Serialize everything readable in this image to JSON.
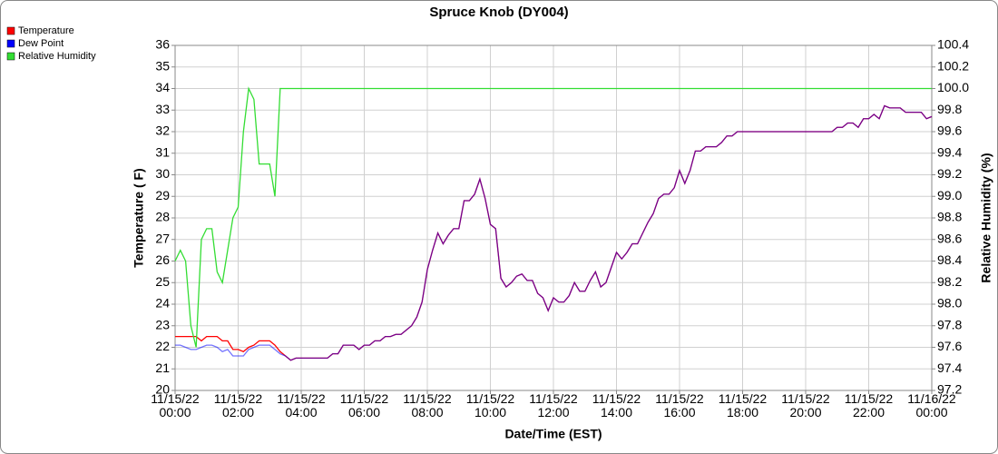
{
  "chart_data": {
    "type": "line",
    "title": "Spruce Knob (DY004)",
    "x_label": "Date/Time (EST)",
    "y_label": "Temperature ( F)",
    "y2_label": "Relative Humidity (%)",
    "xlim": [
      "11/15/22 00:00",
      "11/16/22 00:00"
    ],
    "xticks": [
      "11/15/22 00:00",
      "11/15/22 02:00",
      "11/15/22 04:00",
      "11/15/22 06:00",
      "11/15/22 08:00",
      "11/15/22 10:00",
      "11/15/22 12:00",
      "11/15/22 14:00",
      "11/15/22 16:00",
      "11/15/22 18:00",
      "11/15/22 20:00",
      "11/15/22 22:00",
      "11/16/22 00:00"
    ],
    "ylim": [
      20,
      36
    ],
    "yticks": [
      20,
      21,
      22,
      23,
      24,
      25,
      26,
      27,
      28,
      29,
      30,
      31,
      32,
      33,
      34,
      35,
      36
    ],
    "y2lim": [
      97.2,
      100.4
    ],
    "y2ticks": [
      97.2,
      97.4,
      97.6,
      97.8,
      {
        "value": 98,
        "label": "98.0"
      },
      98.2,
      98.4,
      98.6,
      98.8,
      {
        "value": 99,
        "label": "99.0"
      },
      99.2,
      99.4,
      99.6,
      99.8,
      {
        "value": 100,
        "label": "100.0"
      },
      100.2,
      100.4
    ],
    "grid": true,
    "legend": "top-left",
    "x": [
      "11/15/22 00:00",
      "11/15/22 00:10",
      "11/15/22 00:20",
      "11/15/22 00:30",
      "11/15/22 00:40",
      "11/15/22 00:50",
      "11/15/22 01:00",
      "11/15/22 01:10",
      "11/15/22 01:20",
      "11/15/22 01:30",
      "11/15/22 01:40",
      "11/15/22 01:50",
      "11/15/22 02:00",
      "11/15/22 02:10",
      "11/15/22 02:20",
      "11/15/22 02:30",
      "11/15/22 02:40",
      "11/15/22 02:50",
      "11/15/22 03:00",
      "11/15/22 03:10",
      "11/15/22 03:20",
      "11/15/22 03:30",
      "11/15/22 03:40",
      "11/15/22 03:50",
      "11/15/22 04:00",
      "11/15/22 04:10",
      "11/15/22 04:20",
      "11/15/22 04:30",
      "11/15/22 04:40",
      "11/15/22 04:50",
      "11/15/22 05:00",
      "11/15/22 05:10",
      "11/15/22 05:20",
      "11/15/22 05:30",
      "11/15/22 05:40",
      "11/15/22 05:50",
      "11/15/22 06:00",
      "11/15/22 06:10",
      "11/15/22 06:20",
      "11/15/22 06:30",
      "11/15/22 06:40",
      "11/15/22 06:50",
      "11/15/22 07:00",
      "11/15/22 07:10",
      "11/15/22 07:20",
      "11/15/22 07:30",
      "11/15/22 07:40",
      "11/15/22 07:50",
      "11/15/22 08:00",
      "11/15/22 08:10",
      "11/15/22 08:20",
      "11/15/22 08:30",
      "11/15/22 08:40",
      "11/15/22 08:50",
      "11/15/22 09:00",
      "11/15/22 09:10",
      "11/15/22 09:20",
      "11/15/22 09:30",
      "11/15/22 09:40",
      "11/15/22 09:50",
      "11/15/22 10:00",
      "11/15/22 10:10",
      "11/15/22 10:20",
      "11/15/22 10:30",
      "11/15/22 10:40",
      "11/15/22 10:50",
      "11/15/22 11:00",
      "11/15/22 11:10",
      "11/15/22 11:20",
      "11/15/22 11:30",
      "11/15/22 11:40",
      "11/15/22 11:50",
      "11/15/22 12:00",
      "11/15/22 12:10",
      "11/15/22 12:20",
      "11/15/22 12:30",
      "11/15/22 12:40",
      "11/15/22 12:50",
      "11/15/22 13:00",
      "11/15/22 13:10",
      "11/15/22 13:20",
      "11/15/22 13:30",
      "11/15/22 13:40",
      "11/15/22 13:50",
      "11/15/22 14:00",
      "11/15/22 14:10",
      "11/15/22 14:20",
      "11/15/22 14:30",
      "11/15/22 14:40",
      "11/15/22 14:50",
      "11/15/22 15:00",
      "11/15/22 15:10",
      "11/15/22 15:20",
      "11/15/22 15:30",
      "11/15/22 15:40",
      "11/15/22 15:50",
      "11/15/22 16:00",
      "11/15/22 16:10",
      "11/15/22 16:20",
      "11/15/22 16:30",
      "11/15/22 16:40",
      "11/15/22 16:50",
      "11/15/22 17:00",
      "11/15/22 17:10",
      "11/15/22 17:20",
      "11/15/22 17:30",
      "11/15/22 17:40",
      "11/15/22 17:50",
      "11/15/22 18:00",
      "11/15/22 18:10",
      "11/15/22 18:20",
      "11/15/22 18:30",
      "11/15/22 18:40",
      "11/15/22 18:50",
      "11/15/22 19:00",
      "11/15/22 19:10",
      "11/15/22 19:20",
      "11/15/22 19:30",
      "11/15/22 19:40",
      "11/15/22 19:50",
      "11/15/22 20:00",
      "11/15/22 20:10",
      "11/15/22 20:20",
      "11/15/22 20:30",
      "11/15/22 20:40",
      "11/15/22 20:50",
      "11/15/22 21:00",
      "11/15/22 21:10",
      "11/15/22 21:20",
      "11/15/22 21:30",
      "11/15/22 21:40",
      "11/15/22 21:50",
      "11/15/22 22:00",
      "11/15/22 22:10",
      "11/15/22 22:20",
      "11/15/22 22:30",
      "11/15/22 22:40",
      "11/15/22 22:50",
      "11/15/22 23:00",
      "11/15/22 23:10",
      "11/15/22 23:20",
      "11/15/22 23:30",
      "11/15/22 23:40",
      "11/15/22 23:50",
      "11/16/22 00:00"
    ],
    "series": [
      {
        "name": "Temperature",
        "color": "#ff0000",
        "values": [
          22.5,
          22.5,
          22.5,
          22.5,
          22.5,
          22.3,
          22.5,
          22.5,
          22.5,
          22.3,
          22.3,
          21.9,
          21.9,
          21.8,
          22.0,
          22.1,
          22.3,
          22.3,
          22.3,
          22.1,
          21.8,
          21.6,
          21.4,
          21.5,
          21.5,
          21.5,
          21.5,
          21.5,
          21.5,
          21.5,
          21.7,
          21.7,
          22.1,
          22.1,
          22.1,
          21.9,
          22.1,
          22.1,
          22.3,
          22.3,
          22.5,
          22.5,
          22.6,
          22.6,
          22.8,
          23.0,
          23.4,
          24.1,
          25.6,
          26.5,
          27.3,
          26.8,
          27.2,
          27.5,
          27.5,
          28.8,
          28.8,
          29.1,
          29.8,
          28.9,
          27.7,
          27.5,
          25.2,
          24.8,
          25.0,
          25.3,
          25.4,
          25.1,
          25.1,
          24.5,
          24.3,
          23.7,
          24.3,
          24.1,
          24.1,
          24.4,
          25.0,
          24.6,
          24.6,
          25.1,
          25.5,
          24.8,
          25.0,
          25.7,
          26.4,
          26.1,
          26.4,
          26.8,
          26.8,
          27.3,
          27.8,
          28.2,
          28.9,
          29.1,
          29.1,
          29.4,
          30.2,
          29.6,
          30.2,
          31.1,
          31.1,
          31.3,
          31.3,
          31.3,
          31.5,
          31.8,
          31.8,
          32.0,
          32.0,
          32.0,
          32.0,
          32.0,
          32.0,
          32.0,
          32.0,
          32.0,
          32.0,
          32.0,
          32.0,
          32.0,
          32.0,
          32.0,
          32.0,
          32.0,
          32.0,
          32.0,
          32.2,
          32.2,
          32.4,
          32.4,
          32.2,
          32.6,
          32.6,
          32.8,
          32.6,
          33.2,
          33.1,
          33.1,
          33.1,
          32.9,
          32.9,
          32.9,
          32.9,
          32.6,
          32.7
        ]
      },
      {
        "name": "Dew Point",
        "color": "#0000ff",
        "values": [
          22.1,
          22.1,
          22.0,
          21.9,
          21.9,
          22.0,
          22.1,
          22.1,
          22.0,
          21.8,
          21.9,
          21.6,
          21.6,
          21.6,
          21.9,
          22.0,
          22.1,
          22.1,
          22.1,
          21.9,
          21.7,
          21.6,
          21.4,
          21.5,
          21.5,
          21.5,
          21.5,
          21.5,
          21.5,
          21.5,
          21.7,
          21.7,
          22.1,
          22.1,
          22.1,
          21.9,
          22.1,
          22.1,
          22.3,
          22.3,
          22.5,
          22.5,
          22.6,
          22.6,
          22.8,
          23.0,
          23.4,
          24.1,
          25.6,
          26.5,
          27.3,
          26.8,
          27.2,
          27.5,
          27.5,
          28.8,
          28.8,
          29.1,
          29.8,
          28.9,
          27.7,
          27.5,
          25.2,
          24.8,
          25.0,
          25.3,
          25.4,
          25.1,
          25.1,
          24.5,
          24.3,
          23.7,
          24.3,
          24.1,
          24.1,
          24.4,
          25.0,
          24.6,
          24.6,
          25.1,
          25.5,
          24.8,
          25.0,
          25.7,
          26.4,
          26.1,
          26.4,
          26.8,
          26.8,
          27.3,
          27.8,
          28.2,
          28.9,
          29.1,
          29.1,
          29.4,
          30.2,
          29.6,
          30.2,
          31.1,
          31.1,
          31.3,
          31.3,
          31.3,
          31.5,
          31.8,
          31.8,
          32.0,
          32.0,
          32.0,
          32.0,
          32.0,
          32.0,
          32.0,
          32.0,
          32.0,
          32.0,
          32.0,
          32.0,
          32.0,
          32.0,
          32.0,
          32.0,
          32.0,
          32.0,
          32.0,
          32.2,
          32.2,
          32.4,
          32.4,
          32.2,
          32.6,
          32.6,
          32.8,
          32.6,
          33.2,
          33.1,
          33.1,
          33.1,
          32.9,
          32.9,
          32.9,
          32.9,
          32.6,
          32.7
        ]
      },
      {
        "name": "Relative Humidity",
        "color": "#33dd33",
        "axis": "y2",
        "values": [
          98.4,
          98.5,
          98.4,
          97.8,
          97.6,
          98.6,
          98.7,
          98.7,
          98.3,
          98.2,
          98.5,
          98.8,
          98.9,
          99.6,
          100.0,
          99.9,
          99.3,
          99.3,
          99.3,
          99.0,
          100,
          100,
          100,
          100,
          100,
          100,
          100,
          100,
          100,
          100,
          100,
          100,
          100,
          100,
          100,
          100,
          100,
          100,
          100,
          100,
          100,
          100,
          100,
          100,
          100,
          100,
          100,
          100,
          100,
          100,
          100,
          100,
          100,
          100,
          100,
          100,
          100,
          100,
          100,
          100,
          100,
          100,
          100,
          100,
          100,
          100,
          100,
          100,
          100,
          100,
          100,
          100,
          100,
          100,
          100,
          100,
          100,
          100,
          100,
          100,
          100,
          100,
          100,
          100,
          100,
          100,
          100,
          100,
          100,
          100,
          100,
          100,
          100,
          100,
          100,
          100,
          100,
          100,
          100,
          100,
          100,
          100,
          100,
          100,
          100,
          100,
          100,
          100,
          100,
          100,
          100,
          100,
          100,
          100,
          100,
          100,
          100,
          100,
          100,
          100,
          100,
          100,
          100,
          100,
          100,
          100,
          100,
          100,
          100,
          100,
          100,
          100,
          100,
          100,
          100,
          100,
          100,
          100,
          100,
          100,
          100,
          100,
          100,
          100,
          100
        ]
      }
    ]
  }
}
